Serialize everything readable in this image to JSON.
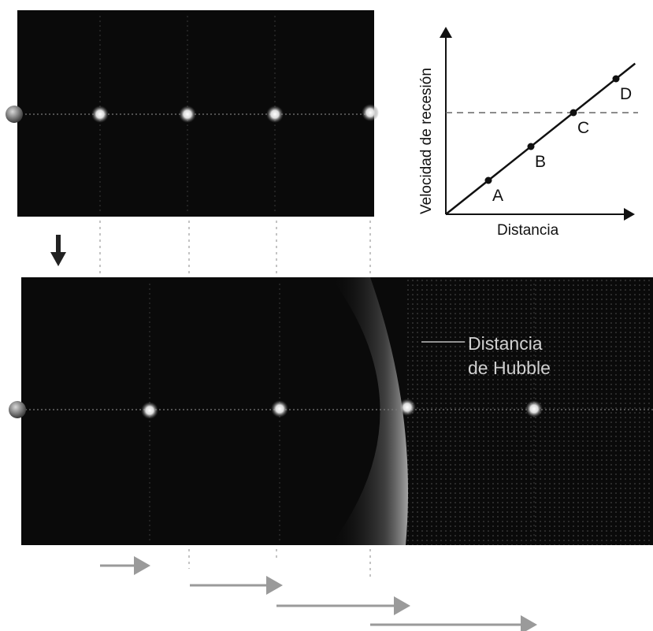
{
  "graph": {
    "ylabel": "Velocidad de recesión",
    "xlabel": "Distancia",
    "points": [
      {
        "label": "A",
        "distance": 1,
        "velocity": 1
      },
      {
        "label": "B",
        "distance": 2,
        "velocity": 2
      },
      {
        "label": "C",
        "distance": 3,
        "velocity": 3
      },
      {
        "label": "D",
        "distance": 4,
        "velocity": 4
      }
    ],
    "hubble_reference_velocity": 3
  },
  "hubble": {
    "line1": "Distancia",
    "line2": "de Hubble"
  },
  "colors": {
    "space": "#0a0a0a",
    "galaxy": "#e8e8e8",
    "earth": "#8a8a8a",
    "arrow": "#9a9a9a"
  }
}
